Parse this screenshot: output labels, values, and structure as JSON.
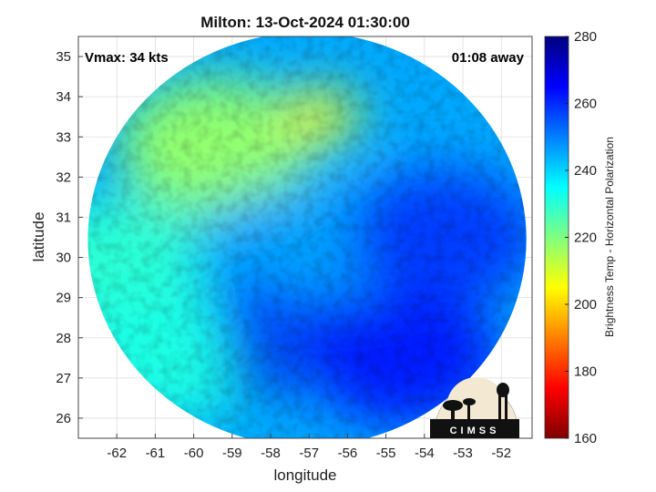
{
  "chart_data": {
    "type": "heatmap",
    "title": "Milton: 13-Oct-2024 01:30:00",
    "xlabel": "longitude",
    "ylabel": "latitude",
    "xlim": [
      -63,
      -51.2
    ],
    "ylim": [
      25.5,
      35.5
    ],
    "x_ticks": [
      -62,
      -61,
      -60,
      -59,
      -58,
      -57,
      -56,
      -55,
      -54,
      -53,
      -52
    ],
    "y_ticks": [
      26,
      27,
      28,
      29,
      30,
      31,
      32,
      33,
      34,
      35
    ],
    "grid": true,
    "annotations": {
      "vmax": "Vmax: 34 kts",
      "time_away": "01:08 away"
    },
    "colorbar": {
      "label": "Brightness Temp - Horizontal Polarization",
      "range": [
        160,
        280
      ],
      "ticks": [
        160,
        180,
        200,
        220,
        240,
        260,
        280
      ],
      "colormap": "jet"
    },
    "swath": {
      "shape": "ellipse",
      "center": [
        -57.05,
        30.45
      ],
      "lon_radius": 5.7,
      "lat_radius": 5.15
    },
    "field_regions": [
      {
        "name": "northwest-warm",
        "lon": -59.5,
        "lat": 32.8,
        "value": 218
      },
      {
        "name": "north-warm-max",
        "lon": -56.7,
        "lat": 33.5,
        "value": 206
      },
      {
        "name": "west-edge",
        "lon": -62.0,
        "lat": 29.8,
        "value": 230
      },
      {
        "name": "southwest",
        "lon": -60.5,
        "lat": 27.6,
        "value": 232
      },
      {
        "name": "center",
        "lon": -57.5,
        "lat": 30.0,
        "value": 246
      },
      {
        "name": "east",
        "lon": -53.5,
        "lat": 30.5,
        "value": 258
      },
      {
        "name": "cold-core-1",
        "lon": -58.5,
        "lat": 28.6,
        "value": 265
      },
      {
        "name": "cold-core-2",
        "lon": -56.6,
        "lat": 28.4,
        "value": 266
      },
      {
        "name": "cold-core-3",
        "lon": -58.3,
        "lat": 27.2,
        "value": 268
      },
      {
        "name": "southeast",
        "lon": -54.5,
        "lat": 27.5,
        "value": 262
      }
    ],
    "colors": {
      "map_background": "#ffffff",
      "grid": "#dddddd"
    }
  },
  "logo": {
    "text": "CIMSS",
    "icon": "cimss-logo-icon"
  }
}
